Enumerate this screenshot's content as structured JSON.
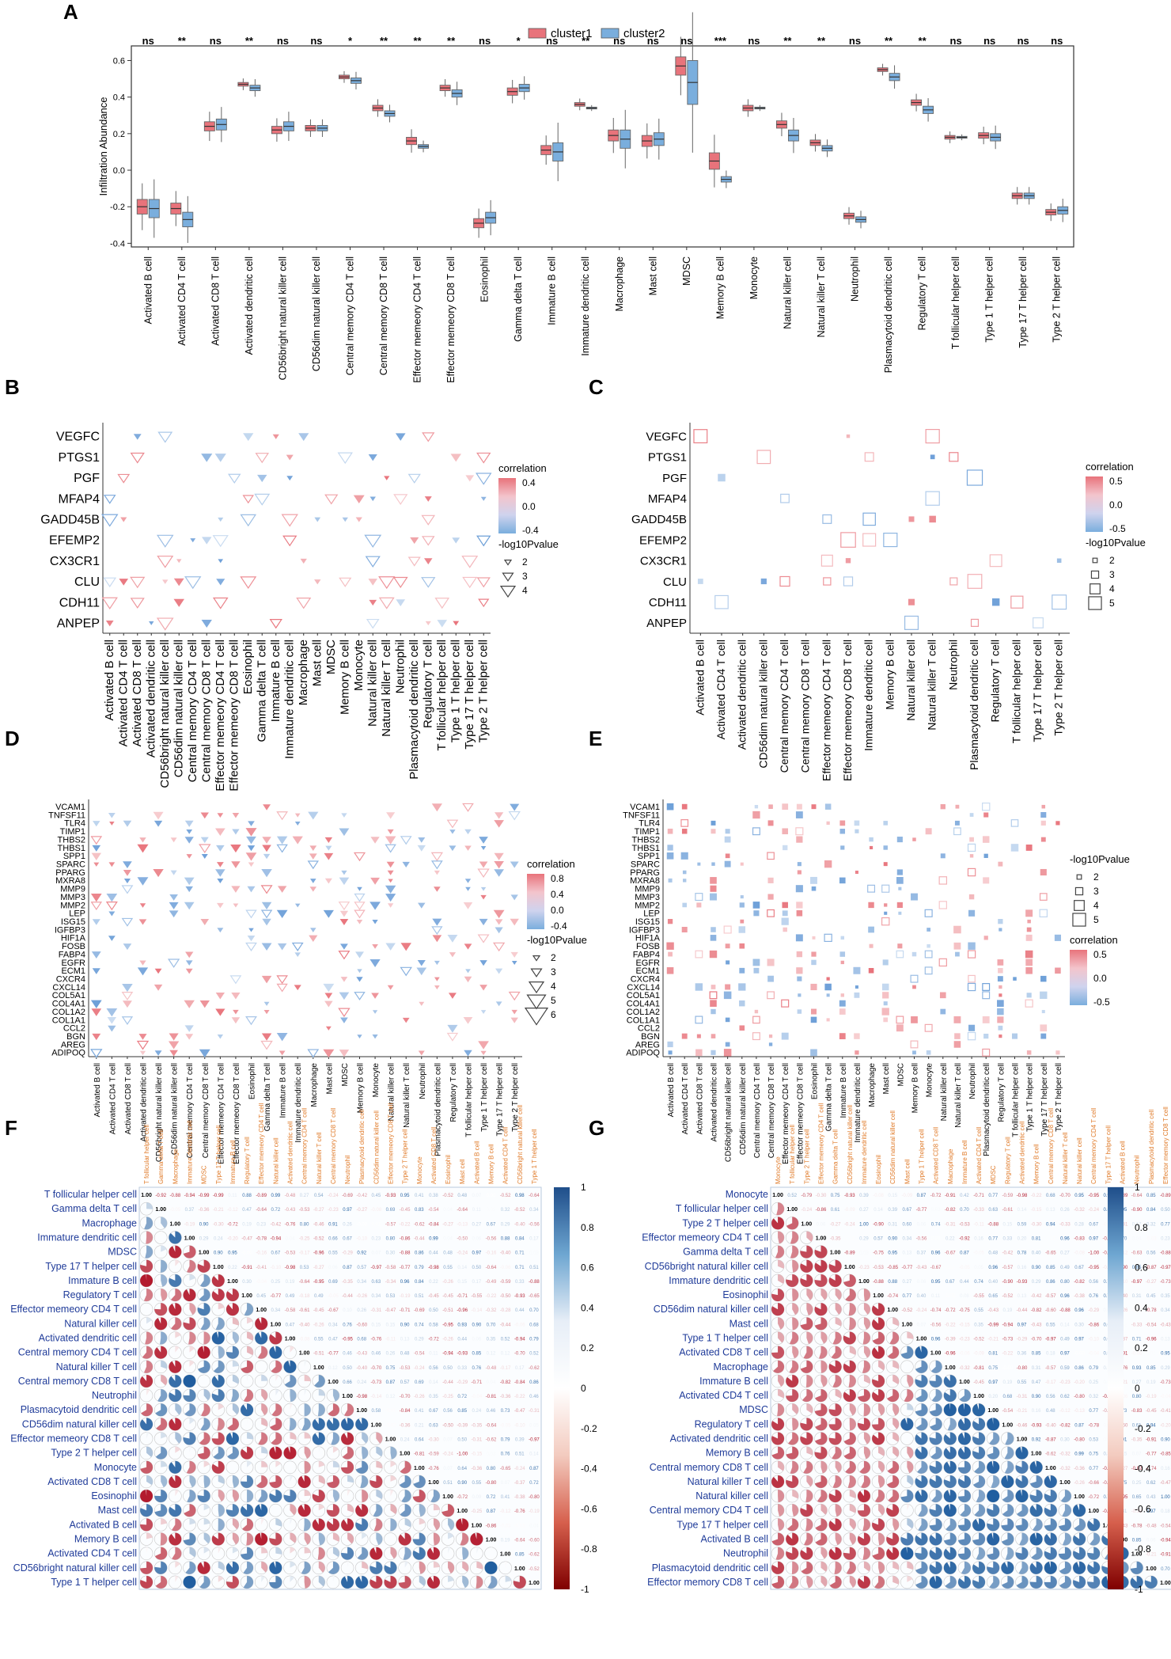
{
  "panel_letters": [
    "A",
    "B",
    "C",
    "D",
    "E",
    "F",
    "G"
  ],
  "colors": {
    "cluster1": "#e8737b",
    "cluster2": "#7aaedd",
    "pos": "#e8737b",
    "neg": "#6d9fd8",
    "corr_pos": "#1f5d9f",
    "corr_neg": "#b2182b",
    "frame": "#333333",
    "text_blue": "#1f3b99",
    "text_orange": "#e07b2a"
  },
  "chart_data": [
    {
      "panel": "A",
      "type": "box",
      "legend": [
        "cluster1",
        "cluster2"
      ],
      "ylabel": "Infiltration Abundance",
      "ylim": [
        -0.42,
        0.68
      ],
      "yticks": [
        -0.4,
        -0.2,
        0.0,
        0.2,
        0.4,
        0.6
      ],
      "categories": [
        "Activated B cell",
        "Activated CD4 T cell",
        "Activated CD8 T cell",
        "Activated dendritic cell",
        "CD56bright natural killer cell",
        "CD56dim natural killer cell",
        "Central memory CD4 T cell",
        "Central memory CD8 T cell",
        "Effector memeory CD4 T cell",
        "Effector memeory CD8 T cell",
        "Eosinophil",
        "Gamma delta T cell",
        "Immature  B cell",
        "Immature dendritic cell",
        "Macrophage",
        "Mast cell",
        "MDSC",
        "Memory B cell",
        "Monocyte",
        "Natural killer cell",
        "Natural killer T cell",
        "Neutrophil",
        "Plasmacytoid dendritic cell",
        "Regulatory T cell",
        "T follicular helper cell",
        "Type 1 T helper cell",
        "Type 17 T helper cell",
        "Type 2 T helper cell"
      ],
      "significance": [
        "ns",
        "**",
        "ns",
        "**",
        "ns",
        "ns",
        "*",
        "**",
        "**",
        "**",
        "ns",
        "*",
        "ns",
        "**",
        "ns",
        "ns",
        "ns",
        "***",
        "ns",
        "**",
        "**",
        "ns",
        "**",
        "**",
        "ns",
        "ns",
        "ns",
        "ns"
      ],
      "series": [
        {
          "name": "cluster1",
          "medians": [
            -0.2,
            -0.21,
            0.24,
            0.47,
            0.22,
            0.23,
            0.51,
            0.34,
            0.16,
            0.45,
            -0.29,
            0.43,
            0.11,
            0.36,
            0.19,
            0.16,
            0.57,
            0.05,
            0.34,
            0.25,
            0.15,
            -0.25,
            0.55,
            0.37,
            0.18,
            0.19,
            -0.14,
            -0.23
          ],
          "iqr": [
            0.08,
            0.06,
            0.05,
            0.02,
            0.04,
            0.03,
            0.02,
            0.03,
            0.04,
            0.03,
            0.05,
            0.04,
            0.05,
            0.02,
            0.06,
            0.06,
            0.1,
            0.09,
            0.03,
            0.04,
            0.03,
            0.03,
            0.02,
            0.03,
            0.02,
            0.03,
            0.03,
            0.03
          ]
        },
        {
          "name": "cluster2",
          "medians": [
            -0.21,
            -0.27,
            0.25,
            0.45,
            0.24,
            0.23,
            0.49,
            0.31,
            0.13,
            0.42,
            -0.26,
            0.45,
            0.1,
            0.34,
            0.17,
            0.17,
            0.48,
            -0.05,
            0.34,
            0.19,
            0.12,
            -0.27,
            0.51,
            0.33,
            0.18,
            0.18,
            -0.14,
            -0.22
          ],
          "iqr": [
            0.1,
            0.08,
            0.06,
            0.03,
            0.05,
            0.03,
            0.03,
            0.03,
            0.02,
            0.04,
            0.06,
            0.04,
            0.1,
            0.01,
            0.1,
            0.07,
            0.24,
            0.03,
            0.01,
            0.06,
            0.03,
            0.03,
            0.04,
            0.04,
            0.01,
            0.04,
            0.03,
            0.04
          ]
        }
      ]
    },
    {
      "panel": "B",
      "type": "heatmap",
      "marker": "triangle",
      "rows": [
        "VEGFC",
        "PTGS1",
        "PGF",
        "MFAP4",
        "GADD45B",
        "EFEMP2",
        "CX3CR1",
        "CLU",
        "CDH11",
        "ANPEP"
      ],
      "columns": [
        "Activated B cell",
        "Activated CD4 T cell",
        "Activated CD8 T cell",
        "Activated dendritic cell",
        "CD56bright natural killer cell",
        "CD56dim natural killer cell",
        "Central memory CD4 T cell",
        "Central memory CD8 T cell",
        "Effector memeory CD4 T cell",
        "Effector memeory CD8 T cell",
        "Eosinophil",
        "Gamma delta T cell",
        "Immature  B cell",
        "Immature dendritic cell",
        "Macrophage",
        "Mast cell",
        "MDSC",
        "Memory B cell",
        "Monocyte",
        "Natural killer cell",
        "Natural killer T cell",
        "Neutrophil",
        "Plasmacytoid dendritic cell",
        "Regulatory T cell",
        "T follicular helper cell",
        "Type 1 T helper cell",
        "Type 17 T helper cell",
        "Type 2 T helper cell"
      ],
      "legend_color": {
        "title": "correlation",
        "ticks": [
          "0.4",
          "0.0",
          "-0.4"
        ]
      },
      "legend_size": {
        "title": "-log10Pvalue",
        "ticks": [
          "2",
          "3",
          "4"
        ]
      }
    },
    {
      "panel": "C",
      "type": "heatmap",
      "marker": "square",
      "rows": [
        "VEGFC",
        "PTGS1",
        "PGF",
        "MFAP4",
        "GADD45B",
        "EFEMP2",
        "CX3CR1",
        "CLU",
        "CDH11",
        "ANPEP"
      ],
      "columns": [
        "Activated B cell",
        "Activated CD4 T cell",
        "Activated dendritic cell",
        "CD56dim natural killer cell",
        "Central memory CD4 T cell",
        "Central memory CD8 T cell",
        "Effector memeory CD4 T cell",
        "Effector memeory CD8 T cell",
        "Immature dendritic cell",
        "Memory B cell",
        "Natural killer cell",
        "Natural killer T cell",
        "Neutrophil",
        "Plasmacytoid dendritic cell",
        "Regulatory T cell",
        "T follicular helper cell",
        "Type 17 T helper cell",
        "Type 2 T helper cell"
      ],
      "legend_color": {
        "title": "correlation",
        "ticks": [
          "0.5",
          "0.0",
          "-0.5"
        ]
      },
      "legend_size": {
        "title": "-log10Pvalue",
        "ticks": [
          "2",
          "3",
          "4",
          "5"
        ]
      }
    },
    {
      "panel": "D",
      "type": "heatmap",
      "marker": "triangle",
      "rows": [
        "VCAM1",
        "TNFSF11",
        "TLR4",
        "TIMP1",
        "THBS2",
        "THBS1",
        "SPP1",
        "SPARC",
        "PPARG",
        "MXRA8",
        "MMP9",
        "MMP3",
        "MMP2",
        "LEP",
        "ISG15",
        "IGFBP3",
        "HIF1A",
        "FOSB",
        "FABP4",
        "EGFR",
        "ECM1",
        "CXCR4",
        "CXCL14",
        "COL5A1",
        "COL4A1",
        "COL1A2",
        "COL1A1",
        "CCL2",
        "BGN",
        "AREG",
        "ADIPOQ"
      ],
      "columns": [
        "Activated B cell",
        "Activated CD4 T cell",
        "Activated CD8 T cell",
        "Activated dendritic cell",
        "CD56bright natural killer cell",
        "CD56dim natural killer cell",
        "Central memory CD4 T cell",
        "Central memory CD8 T cell",
        "Effector memeory CD4 T cell",
        "Effector memeory CD8 T cell",
        "Eosinophil",
        "Gamma delta T cell",
        "Immature  B cell",
        "Immature dendritic cell",
        "Macrophage",
        "Mast cell",
        "MDSC",
        "Memory B cell",
        "Monocyte",
        "Natural killer cell",
        "Natural killer T cell",
        "Neutrophil",
        "Plasmacytoid dendritic cell",
        "Regulatory T cell",
        "T follicular helper cell",
        "Type 1 T helper cell",
        "Type 17 T helper cell",
        "Type 2 T helper cell"
      ],
      "legend_color": {
        "title": "correlation",
        "ticks": [
          "0.8",
          "0.4",
          "0.0",
          "-0.4"
        ]
      },
      "legend_size": {
        "title": "-log10Pvalue",
        "ticks": [
          "2",
          "3",
          "4",
          "5",
          "6"
        ]
      }
    },
    {
      "panel": "E",
      "type": "heatmap",
      "marker": "square",
      "rows": [
        "VCAM1",
        "TNFSF11",
        "TLR4",
        "TIMP1",
        "THBS2",
        "THBS1",
        "SPP1",
        "SPARC",
        "PPARG",
        "MXRA8",
        "MMP9",
        "MMP3",
        "MMP2",
        "LEP",
        "ISG15",
        "IGFBP3",
        "HIF1A",
        "FOSB",
        "FABP4",
        "EGFR",
        "ECM1",
        "CXCR4",
        "CXCL14",
        "COL5A1",
        "COL4A1",
        "COL1A2",
        "COL1A1",
        "CCL2",
        "BGN",
        "AREG",
        "ADIPOQ"
      ],
      "columns": [
        "Activated B cell",
        "Activated CD4 T cell",
        "Activated CD8 T cell",
        "Activated dendritic cell",
        "CD56bright natural killer cell",
        "CD56dim natural killer cell",
        "Central memory CD4 T cell",
        "Central memory CD8 T cell",
        "Effector memeory CD4 T cell",
        "Effector memeory CD8 T cell",
        "Eosinophil",
        "Gamma delta T cell",
        "Immature  B cell",
        "Immature dendritic cell",
        "Macrophage",
        "Mast cell",
        "MDSC",
        "Memory B cell",
        "Monocyte",
        "Natural killer cell",
        "Natural killer T cell",
        "Neutrophil",
        "Plasmacytoid dendritic cell",
        "Regulatory T cell",
        "T follicular helper cell",
        "Type 1 T helper cell",
        "Type 17 T helper cell",
        "Type 2 T helper cell"
      ],
      "legend_size": {
        "title": "-log10Pvalue",
        "ticks": [
          "2",
          "3",
          "4",
          "5"
        ]
      },
      "legend_color": {
        "title": "correlation",
        "ticks": [
          "0.5",
          "0.0",
          "-0.5"
        ]
      }
    },
    {
      "panel": "F",
      "type": "heatmap",
      "marker": "pie-correlogram",
      "labels": [
        "T follicular helper cell",
        "Gamma delta T cell",
        "Macrophage",
        "Immature dendritic cell",
        "MDSC",
        "Type 17 T helper cell",
        "Immature  B cell",
        "Regulatory T cell",
        "Effector memeory CD4 T cell",
        "Natural killer cell",
        "Activated dendritic cell",
        "Central memory CD4 T cell",
        "Natural killer T cell",
        "Central memory CD8 T cell",
        "Neutrophil",
        "Plasmacytoid dendritic cell",
        "CD56dim natural killer cell",
        "Effector memeory CD8 T cell",
        "Type 2 T helper cell",
        "Monocyte",
        "Activated CD8 T cell",
        "Eosinophil",
        "Mast cell",
        "Activated B cell",
        "Memory B cell",
        "Activated CD4 T cell",
        "CD56bright natural killer cell",
        "Type 1 T helper cell"
      ],
      "colorbar_ticks": [
        "1",
        "0.8",
        "0.6",
        "0.4",
        "0.2",
        "0",
        "-0.2",
        "-0.4",
        "-0.6",
        "-0.8",
        "-1"
      ]
    },
    {
      "panel": "G",
      "type": "heatmap",
      "marker": "pie-correlogram",
      "labels": [
        "Monocyte",
        "T follicular helper cell",
        "Type 2 T helper cell",
        "Effector memeory CD4 T cell",
        "Gamma delta T cell",
        "CD56bright natural killer cell",
        "Immature dendritic cell",
        "Eosinophil",
        "CD56dim natural killer cell",
        "Mast cell",
        "Type 1 T helper cell",
        "Activated CD8 T cell",
        "Macrophage",
        "Immature  B cell",
        "Activated CD4 T cell",
        "MDSC",
        "Regulatory T cell",
        "Activated dendritic cell",
        "Memory B cell",
        "Central memory CD8 T cell",
        "Natural killer T cell",
        "Natural killer cell",
        "Central memory CD4 T cell",
        "Type 17 T helper cell",
        "Activated B cell",
        "Neutrophil",
        "Plasmacytoid dendritic cell",
        "Effector memory CD8 T cell"
      ],
      "colorbar_ticks": [
        "1",
        "0.8",
        "0.6",
        "0.4",
        "0.2",
        "0",
        "-0.2",
        "-0.4",
        "-0.6",
        "-0.8",
        "-1"
      ]
    }
  ]
}
